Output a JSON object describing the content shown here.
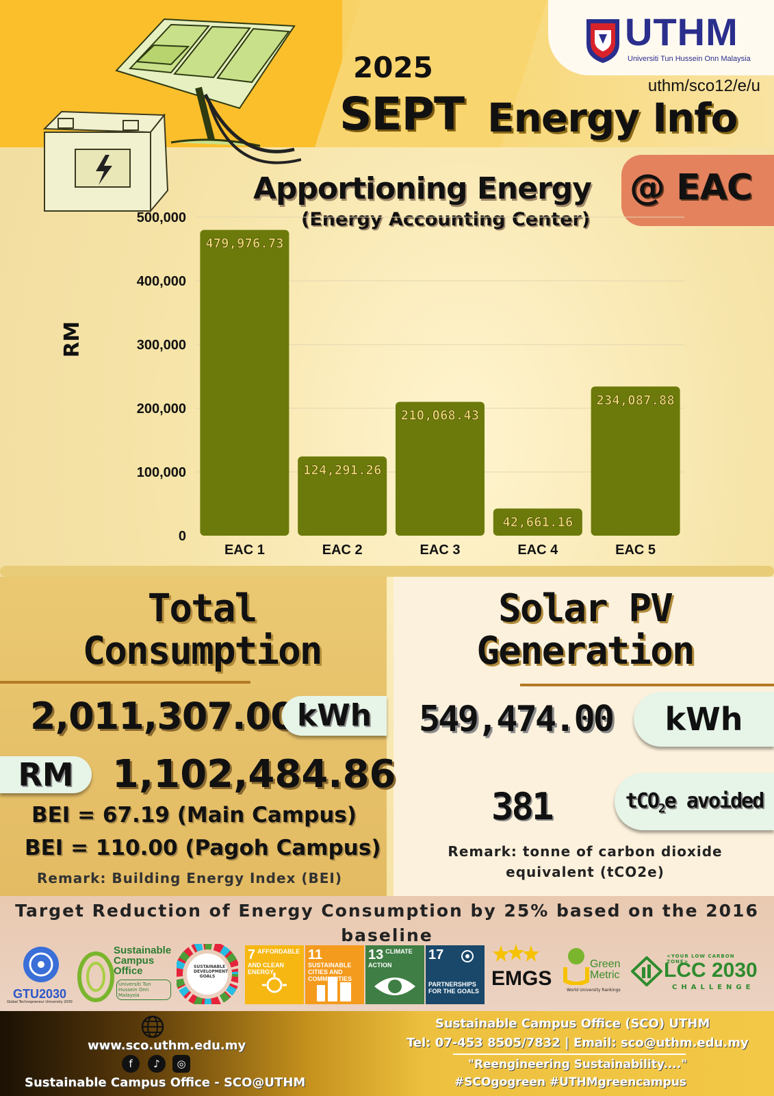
{
  "header": {
    "year": "2025",
    "month": "SEPT",
    "ref_code": "uthm/sco12/e/u",
    "title": "Energy Info",
    "logo_text": "UTHM",
    "logo_subtitle": "Universiti Tun Hussein Onn Malaysia"
  },
  "chart_section": {
    "tag": "@ EAC"
  },
  "chart_data": {
    "type": "bar",
    "title": "Apportioning Energy",
    "subtitle": "(Energy Accounting Center)",
    "ylabel": "RM",
    "xlabel": "",
    "categories": [
      "EAC 1",
      "EAC 2",
      "EAC 3",
      "EAC 4",
      "EAC 5"
    ],
    "values": [
      479976.73,
      124291.26,
      210068.43,
      42661.16,
      234087.88
    ],
    "value_labels": [
      "479,976.73",
      "124,291.26",
      "210,068.43",
      "42,661.16",
      "234,087.88"
    ],
    "ylim": [
      0,
      500000
    ],
    "yticks": [
      0,
      100000,
      200000,
      300000,
      400000,
      500000
    ],
    "ytick_labels": [
      "0",
      "100,000",
      "200,000",
      "300,000",
      "400,000",
      "500,000"
    ],
    "grid": true,
    "bar_color": "#6b7a0a",
    "label_color": "#f3dc74"
  },
  "total_consumption": {
    "heading_line1": "Total",
    "heading_line2": "Consumption",
    "kwh_value": "2,011,307.00",
    "kwh_unit": "kWh",
    "rm_unit": "RM",
    "rm_value": "1,102,484.86",
    "bei_main": "BEI = 67.19 (Main Campus)",
    "bei_pagoh": "BEI =  110.00 (Pagoh Campus)",
    "remark": "Remark: Building Energy Index (BEI)"
  },
  "solar_pv": {
    "heading_line1": "Solar PV",
    "heading_line2": "Generation",
    "kwh_value": "549,474.00",
    "kwh_unit": "kWh",
    "co2_value": "381",
    "co2_unit_prefix": "tCO",
    "co2_unit_sub": "2",
    "co2_unit_suffix": "e avoided",
    "remark": "Remark: tonne of carbon dioxide equivalent (tCO2e)"
  },
  "target": {
    "text": "Target Reduction of Energy Consumption by 25% based on the 2016 baseline"
  },
  "badges": {
    "gtu_label": "GTU2030",
    "gtu_sub": "Global Technopreneur University 2030",
    "sco_title": "Sustainable Campus Office",
    "sco_sub": "Universiti Tun Hussein Onn Malaysia",
    "sdg_goals": "SUSTAINABLE DEVELOPMENT GOALS",
    "sdg7_num": "7",
    "sdg7_label": "AFFORDABLE AND CLEAN ENERGY",
    "sdg7_color": "#f6b712",
    "sdg11_num": "11",
    "sdg11_label": "SUSTAINABLE CITIES AND COMMUNITIES",
    "sdg11_color": "#f49a1c",
    "sdg13_num": "13",
    "sdg13_label": "CLIMATE ACTION",
    "sdg13_color": "#3f7e44",
    "sdg17_num": "17",
    "sdg17_label": "PARTNERSHIPS FOR THE GOALS",
    "sdg17_color": "#19486a",
    "emgs_label": "EMGS",
    "greenmetric_label": "Green Metric",
    "greenmetric_sub": "World University Rankings",
    "lcc_tag": "<YOUR LOW CARBON ZONE>",
    "lcc_label": "LCC 2030",
    "lcc_sub": "CHALLENGE"
  },
  "footer": {
    "website": "www.sco.uthm.edu.my",
    "office_name": "Sustainable Campus Office - SCO@UTHM",
    "office_title": "Sustainable Campus Office (SCO) UTHM",
    "contact": "Tel: 07-453 8505/7832 | Email: sco@uthm.edu.my",
    "slogan": "\"Reengineering Sustainability....\"",
    "hashtags": "#SCOgogreen #UTHMgreencampus",
    "facebook_glyph": "f",
    "tiktok_glyph": "♪",
    "instagram_glyph": "◎"
  }
}
